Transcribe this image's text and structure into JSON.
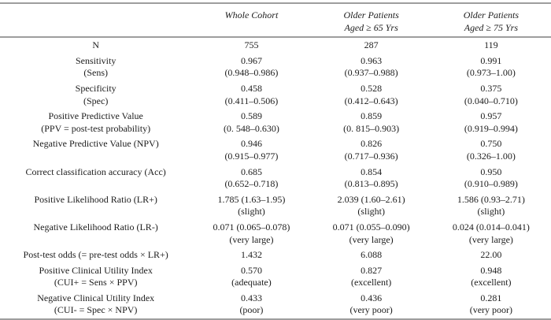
{
  "page": {
    "background": "#ffffff",
    "rule_color": "#9e9e9e",
    "text_color": "#1c1c1c"
  },
  "table": {
    "header": {
      "corner": "",
      "columns": [
        {
          "lines": [
            "Whole Cohort"
          ]
        },
        {
          "lines": [
            "Older Patients",
            "Aged ≥ 65 Yrs"
          ]
        },
        {
          "lines": [
            "Older Patients",
            "Aged ≥ 75 Yrs"
          ]
        }
      ]
    },
    "rows": [
      {
        "id": "n",
        "label": [
          "N"
        ],
        "values": [
          [
            "755"
          ],
          [
            "287"
          ],
          [
            "119"
          ]
        ]
      },
      {
        "id": "sensitivity",
        "label": [
          "Sensitivity",
          "(Sens)"
        ],
        "values": [
          [
            "0.967",
            "(0.948–0.986)"
          ],
          [
            "0.963",
            "(0.937–0.988)"
          ],
          [
            "0.991",
            "(0.973–1.00)"
          ]
        ]
      },
      {
        "id": "specificity",
        "label": [
          "Specificity",
          "(Spec)"
        ],
        "values": [
          [
            "0.458",
            "(0.411–0.506)"
          ],
          [
            "0.528",
            "(0.412–0.643)"
          ],
          [
            "0.375",
            "(0.040–0.710)"
          ]
        ]
      },
      {
        "id": "ppv",
        "label": [
          "Positive Predictive Value",
          "(PPV = post-test probability)"
        ],
        "values": [
          [
            "0.589",
            "(0. 548–0.630)"
          ],
          [
            "0.859",
            "(0. 815–0.903)"
          ],
          [
            "0.957",
            "(0.919–0.994)"
          ]
        ]
      },
      {
        "id": "npv",
        "label": [
          "Negative Predictive Value (NPV)"
        ],
        "values": [
          [
            "0.946",
            "(0.915–0.977)"
          ],
          [
            "0.826",
            "(0.717–0.936)"
          ],
          [
            "0.750",
            "(0.326–1.00)"
          ]
        ]
      },
      {
        "id": "accuracy",
        "label": [
          "Correct classification accuracy (Acc)"
        ],
        "values": [
          [
            "0.685",
            "(0.652–0.718)"
          ],
          [
            "0.854",
            "(0.813–0.895)"
          ],
          [
            "0.950",
            "(0.910–0.989)"
          ]
        ]
      },
      {
        "id": "lr-plus",
        "label": [
          "Positive Likelihood Ratio (LR+)"
        ],
        "values": [
          [
            "1.785 (1.63–1.95)",
            "(slight)"
          ],
          [
            "2.039 (1.60–2.61)",
            "(slight)"
          ],
          [
            "1.586 (0.93–2.71)",
            "(slight)"
          ]
        ]
      },
      {
        "id": "lr-minus",
        "label": [
          "Negative Likelihood Ratio (LR-)"
        ],
        "values": [
          [
            "0.071 (0.065–0.078)",
            "(very large)"
          ],
          [
            "0.071 (0.055–0.090)",
            "(very large)"
          ],
          [
            "0.024 (0.014–0.041)",
            "(very large)"
          ]
        ]
      },
      {
        "id": "post-test-odds",
        "label": [
          "Post-test odds (= pre-test odds × LR+)"
        ],
        "values": [
          [
            "1.432"
          ],
          [
            "6.088"
          ],
          [
            "22.00"
          ]
        ]
      },
      {
        "id": "cui-plus",
        "label": [
          "Positive Clinical Utility Index",
          "(CUI+ = Sens × PPV)"
        ],
        "values": [
          [
            "0.570",
            "(adequate)"
          ],
          [
            "0.827",
            "(excellent)"
          ],
          [
            "0.948",
            "(excellent)"
          ]
        ]
      },
      {
        "id": "cui-minus",
        "label": [
          "Negative Clinical Utility Index",
          "(CUI- = Spec × NPV)"
        ],
        "values": [
          [
            "0.433",
            "(poor)"
          ],
          [
            "0.436",
            "(very poor)"
          ],
          [
            "0.281",
            "(very poor)"
          ]
        ]
      }
    ]
  }
}
